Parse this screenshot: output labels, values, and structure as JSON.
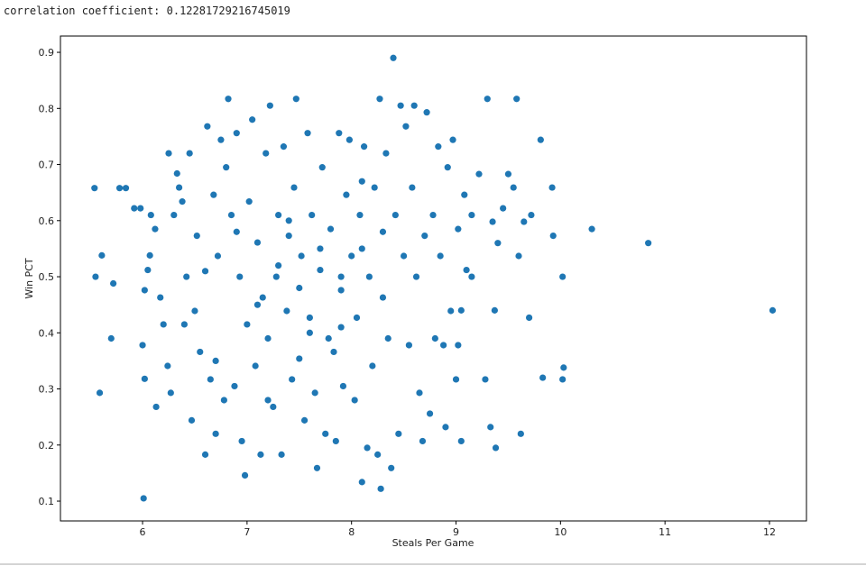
{
  "output_text": "correlation coefficient: 0.12281729216745019",
  "chart_data": {
    "type": "scatter",
    "xlabel": "Steals Per Game",
    "ylabel": "Win PCT",
    "color": "#1f77b4",
    "xlim": [
      5.214,
      12.354
    ],
    "ylim": [
      0.0647,
      0.929
    ],
    "xticks": [
      6,
      7,
      8,
      9,
      10,
      11,
      12
    ],
    "yticks": [
      0.1,
      0.2,
      0.3,
      0.4,
      0.5,
      0.6,
      0.7,
      0.8,
      0.9
    ],
    "x": [
      12.03,
      10.84,
      10.3,
      5.54,
      5.55,
      5.59,
      5.61,
      5.7,
      5.72,
      5.78,
      5.84,
      5.92,
      5.98,
      6.01,
      6.0,
      6.02,
      6.02,
      6.05,
      6.07,
      6.08,
      6.12,
      6.13,
      6.17,
      6.2,
      6.25,
      6.24,
      6.27,
      6.3,
      6.33,
      6.35,
      6.38,
      6.4,
      6.42,
      6.45,
      6.47,
      6.5,
      6.52,
      6.55,
      6.6,
      6.62,
      6.65,
      6.68,
      6.7,
      6.72,
      6.75,
      6.78,
      6.8,
      6.82,
      6.85,
      6.88,
      6.9,
      6.93,
      6.95,
      6.98,
      7.0,
      7.02,
      7.05,
      7.08,
      7.1,
      7.13,
      7.15,
      7.18,
      7.2,
      7.22,
      7.25,
      7.28,
      7.3,
      7.33,
      7.35,
      7.38,
      7.4,
      7.43,
      7.45,
      7.47,
      7.5,
      7.52,
      7.55,
      7.58,
      7.6,
      7.62,
      7.65,
      7.67,
      7.7,
      7.72,
      7.75,
      7.78,
      7.8,
      7.83,
      7.85,
      7.88,
      7.9,
      7.92,
      7.95,
      7.98,
      8.0,
      8.03,
      8.05,
      8.08,
      8.1,
      8.12,
      8.15,
      8.17,
      8.2,
      8.22,
      8.25,
      8.27,
      8.28,
      8.3,
      8.33,
      8.35,
      8.38,
      8.4,
      8.42,
      8.45,
      8.47,
      8.5,
      8.52,
      8.55,
      8.58,
      8.6,
      8.62,
      8.65,
      8.68,
      8.7,
      8.72,
      8.75,
      8.78,
      8.8,
      8.83,
      8.85,
      8.88,
      8.9,
      8.92,
      8.95,
      8.97,
      9.0,
      9.02,
      9.05,
      9.08,
      9.1,
      9.15,
      9.22,
      9.28,
      9.3,
      9.33,
      9.35,
      9.37,
      9.38,
      9.4,
      9.45,
      9.5,
      9.55,
      9.58,
      9.6,
      9.62,
      9.65,
      9.7,
      9.72,
      9.81,
      9.83,
      9.92,
      9.93,
      10.02,
      10.03,
      10.02,
      9.02,
      9.05,
      9.15,
      6.9,
      7.1,
      7.3,
      7.5,
      7.7,
      7.9,
      8.1,
      8.3,
      7.4,
      7.6,
      7.2,
      7.9,
      8.1,
      6.6,
      6.7
    ],
    "values": [
      0.44,
      0.56,
      0.585,
      0.658,
      0.5,
      0.293,
      0.538,
      0.39,
      0.488,
      0.658,
      0.658,
      0.622,
      0.622,
      0.105,
      0.378,
      0.318,
      0.476,
      0.512,
      0.538,
      0.61,
      0.585,
      0.268,
      0.463,
      0.415,
      0.72,
      0.341,
      0.293,
      0.61,
      0.684,
      0.659,
      0.634,
      0.415,
      0.5,
      0.72,
      0.244,
      0.439,
      0.573,
      0.366,
      0.183,
      0.768,
      0.317,
      0.646,
      0.22,
      0.537,
      0.744,
      0.28,
      0.695,
      0.817,
      0.61,
      0.305,
      0.756,
      0.5,
      0.207,
      0.146,
      0.415,
      0.634,
      0.78,
      0.341,
      0.561,
      0.183,
      0.463,
      0.72,
      0.39,
      0.805,
      0.268,
      0.5,
      0.61,
      0.183,
      0.732,
      0.439,
      0.573,
      0.317,
      0.659,
      0.817,
      0.354,
      0.537,
      0.244,
      0.756,
      0.427,
      0.61,
      0.293,
      0.159,
      0.512,
      0.695,
      0.22,
      0.39,
      0.585,
      0.366,
      0.207,
      0.756,
      0.476,
      0.305,
      0.646,
      0.744,
      0.537,
      0.28,
      0.427,
      0.61,
      0.134,
      0.732,
      0.195,
      0.5,
      0.341,
      0.659,
      0.183,
      0.817,
      0.122,
      0.463,
      0.72,
      0.39,
      0.159,
      0.89,
      0.61,
      0.22,
      0.805,
      0.537,
      0.768,
      0.378,
      0.659,
      0.805,
      0.5,
      0.293,
      0.207,
      0.573,
      0.793,
      0.256,
      0.61,
      0.39,
      0.732,
      0.537,
      0.378,
      0.232,
      0.695,
      0.439,
      0.744,
      0.317,
      0.585,
      0.207,
      0.646,
      0.512,
      0.61,
      0.683,
      0.317,
      0.817,
      0.232,
      0.598,
      0.44,
      0.195,
      0.56,
      0.622,
      0.683,
      0.659,
      0.817,
      0.537,
      0.22,
      0.598,
      0.427,
      0.61,
      0.744,
      0.32,
      0.659,
      0.573,
      0.5,
      0.338,
      0.317,
      0.378,
      0.44,
      0.5,
      0.58,
      0.45,
      0.52,
      0.48,
      0.55,
      0.5,
      0.55,
      0.58,
      0.6,
      0.4,
      0.28,
      0.41,
      0.67,
      0.51,
      0.35
    ]
  }
}
